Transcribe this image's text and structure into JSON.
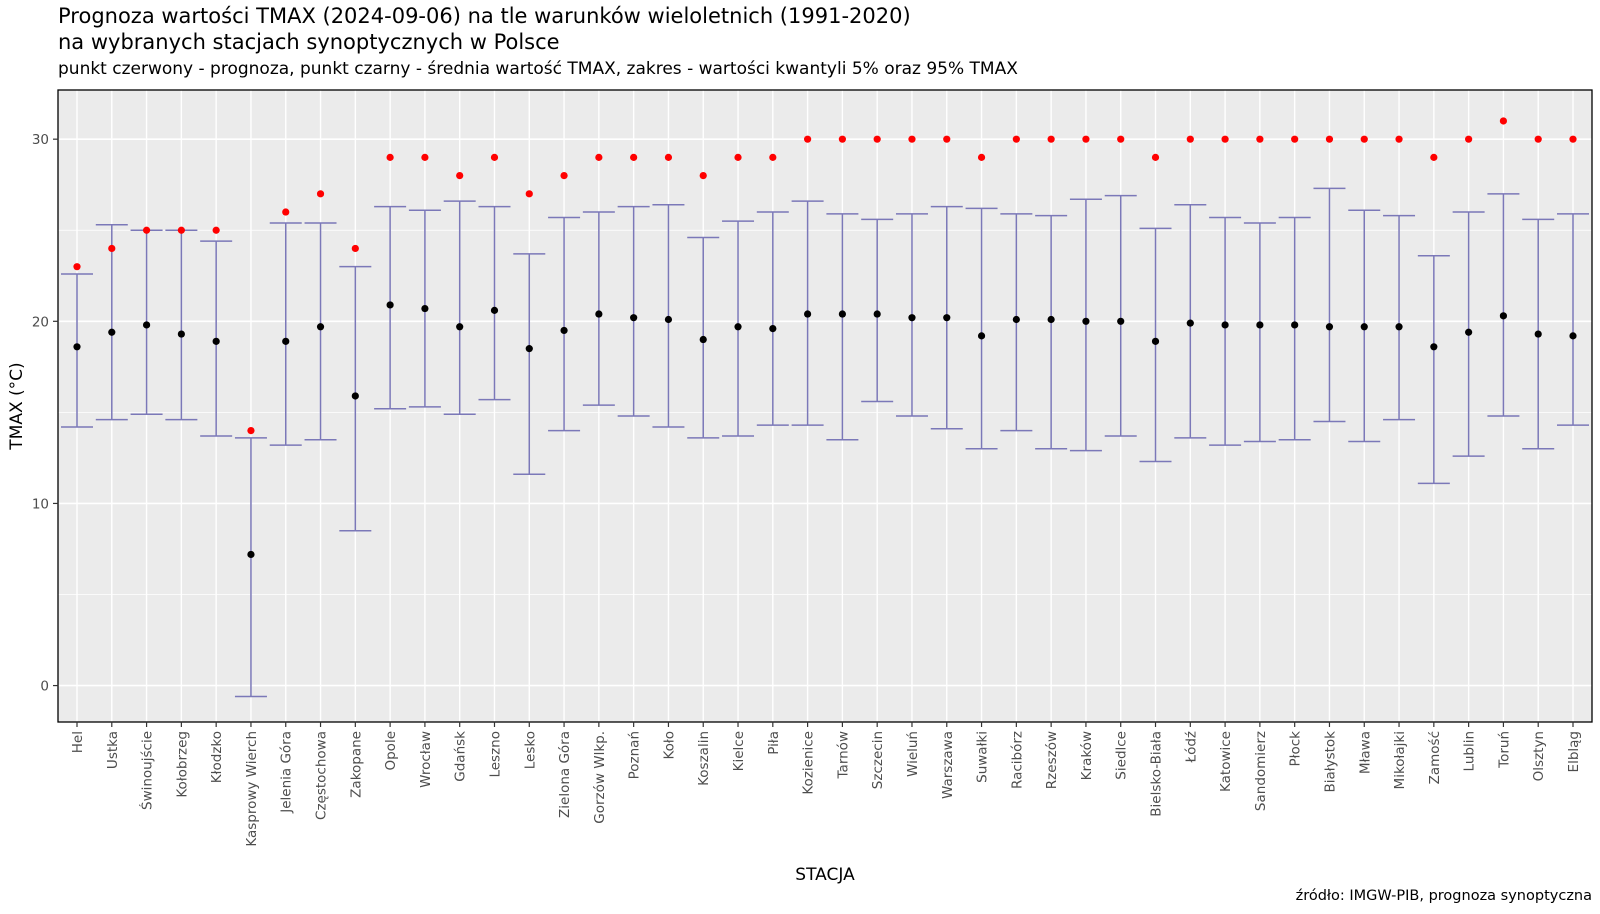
{
  "title": "Prognoza wartości TMAX (2024-09-06) na tle warunków wieloletnich (1991-2020)",
  "subtitle_line2": "na wybranych stacjach synoptycznych w Polsce",
  "subtitle": "punkt czerwony - prognoza, punkt czarny - średnia wartość TMAX, zakres - wartości kwantyli 5% oraz 95% TMAX",
  "caption": "źródło: IMGW-PIB, prognoza synoptyczna",
  "colors": {
    "forecast": "#ff0000",
    "mean": "#000000",
    "range": "#7b78b8",
    "panel": "#ebebeb",
    "grid": "#ffffff"
  },
  "chart_data": {
    "type": "scatter",
    "xlabel": "STACJA",
    "ylabel": "TMAX (°C)",
    "ylim": [
      -2,
      32.7
    ],
    "yticks": [
      0,
      10,
      20,
      30
    ],
    "grid": true,
    "legend": "none",
    "categories": [
      "Hel",
      "Ustka",
      "Świnoujście",
      "Kołobrzeg",
      "Kłodzko",
      "Kasprowy Wierch",
      "Jelenia Góra",
      "Częstochowa",
      "Zakopane",
      "Opole",
      "Wrocław",
      "Gdańsk",
      "Leszno",
      "Lesko",
      "Zielona Góra",
      "Gorzów Wlkp.",
      "Poznań",
      "Koło",
      "Koszalin",
      "Kielce",
      "Piła",
      "Kozienice",
      "Tarnów",
      "Szczecin",
      "Wieluń",
      "Warszawa",
      "Suwałki",
      "Racibórz",
      "Rzeszów",
      "Kraków",
      "Siedlce",
      "Bielsko-Biała",
      "Łódź",
      "Katowice",
      "Sandomierz",
      "Płock",
      "Białystok",
      "Mława",
      "Mikołajki",
      "Zamość",
      "Lublin",
      "Toruń",
      "Olsztyn",
      "Elbląg"
    ],
    "series": [
      {
        "name": "prognoza",
        "values": [
          23,
          24,
          25,
          25,
          25,
          14,
          26,
          27,
          24,
          29,
          29,
          28,
          29,
          27,
          28,
          29,
          29,
          29,
          28,
          29,
          29,
          30,
          30,
          30,
          30,
          30,
          29,
          30,
          30,
          30,
          30,
          29,
          30,
          30,
          30,
          30,
          30,
          30,
          30,
          29,
          30,
          31,
          30,
          30
        ]
      },
      {
        "name": "średnia wartość TMAX",
        "values": [
          18.6,
          19.4,
          19.8,
          19.3,
          18.9,
          7.2,
          18.9,
          19.7,
          15.9,
          20.9,
          20.7,
          19.7,
          20.6,
          18.5,
          19.5,
          20.4,
          20.2,
          20.1,
          19.0,
          19.7,
          19.6,
          20.4,
          20.4,
          20.4,
          20.2,
          20.2,
          19.2,
          20.1,
          20.1,
          20.0,
          20.0,
          18.9,
          19.9,
          19.8,
          19.8,
          19.8,
          19.7,
          19.7,
          19.7,
          18.6,
          19.4,
          20.3,
          19.3,
          19.2
        ]
      },
      {
        "name": "kwantyl 5%",
        "values": [
          14.2,
          14.6,
          14.9,
          14.6,
          13.7,
          -0.6,
          13.2,
          13.5,
          8.5,
          15.2,
          15.3,
          14.9,
          15.7,
          11.6,
          14.0,
          15.4,
          14.8,
          14.2,
          13.6,
          13.7,
          14.3,
          14.3,
          13.5,
          15.6,
          14.8,
          14.1,
          13.0,
          14.0,
          13.0,
          12.9,
          13.7,
          12.3,
          13.6,
          13.2,
          13.4,
          13.5,
          14.5,
          13.4,
          14.6,
          11.1,
          12.6,
          14.8,
          13.0,
          14.3
        ]
      },
      {
        "name": "kwantyl 95%",
        "values": [
          22.6,
          25.3,
          25.0,
          25.0,
          24.4,
          13.6,
          25.4,
          25.4,
          23.0,
          26.3,
          26.1,
          26.6,
          26.3,
          23.7,
          25.7,
          26.0,
          26.3,
          26.4,
          24.6,
          25.5,
          26.0,
          26.6,
          25.9,
          25.6,
          25.9,
          26.3,
          26.2,
          25.9,
          25.8,
          26.7,
          26.9,
          25.1,
          26.4,
          25.7,
          25.4,
          25.7,
          27.3,
          26.1,
          25.8,
          23.6,
          26.0,
          27.0,
          25.6,
          25.9
        ]
      }
    ]
  }
}
